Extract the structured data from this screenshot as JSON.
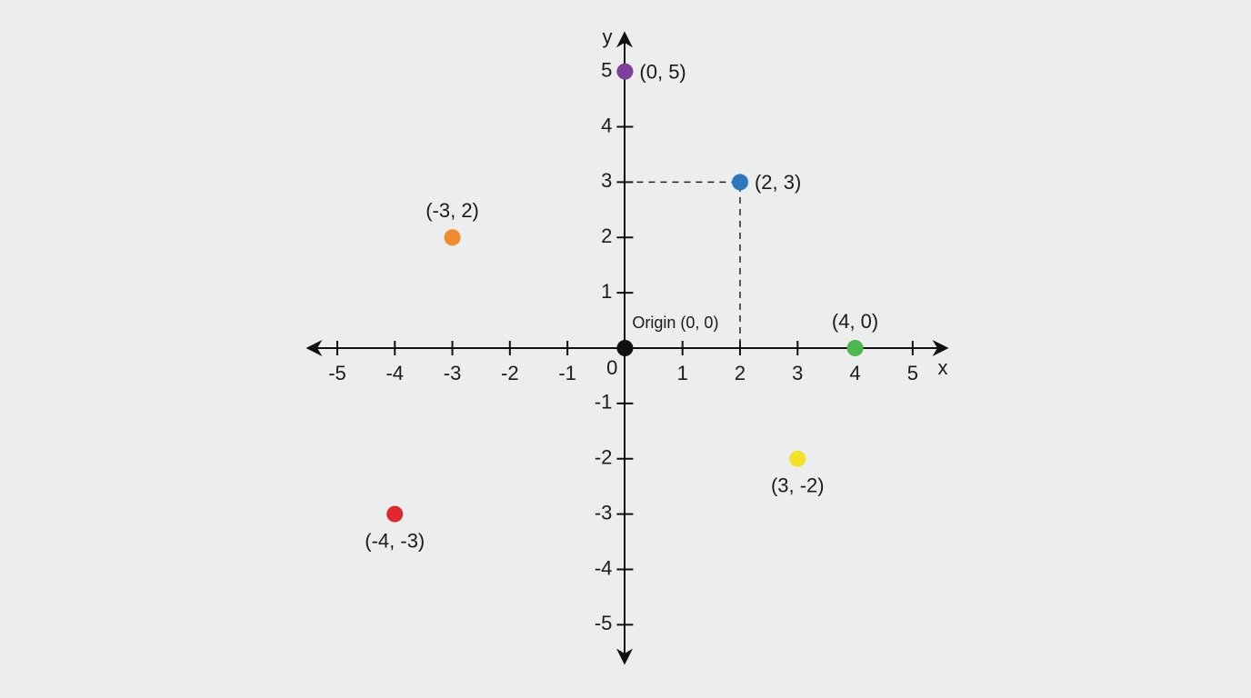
{
  "chart_data": {
    "type": "scatter",
    "x_label": "x",
    "y_label": "y",
    "x": [
      0,
      2,
      -3,
      4,
      3,
      -4,
      0
    ],
    "values": [
      5,
      3,
      2,
      0,
      -2,
      -3,
      0
    ],
    "value_labels": [
      "(0, 5)",
      "(2, 3)",
      "(-3, 2)",
      "(4, 0)",
      "(3, -2)",
      "(-4, -3)",
      "Origin (0, 0)"
    ],
    "colors": [
      "#7d3f98",
      "#2b77c0",
      "#f28a2e",
      "#4db84e",
      "#f2e125",
      "#e0282e",
      "#111111"
    ],
    "guides": [
      1
    ],
    "xlim": [
      -5.6,
      5.65
    ],
    "ylim": [
      -5.75,
      5.75
    ],
    "xticks": [
      -5,
      -4,
      -3,
      -2,
      -1,
      0,
      1,
      2,
      3,
      4,
      5
    ],
    "yticks": [
      -5,
      -4,
      -3,
      -2,
      -1,
      1,
      2,
      3,
      4,
      5
    ]
  }
}
